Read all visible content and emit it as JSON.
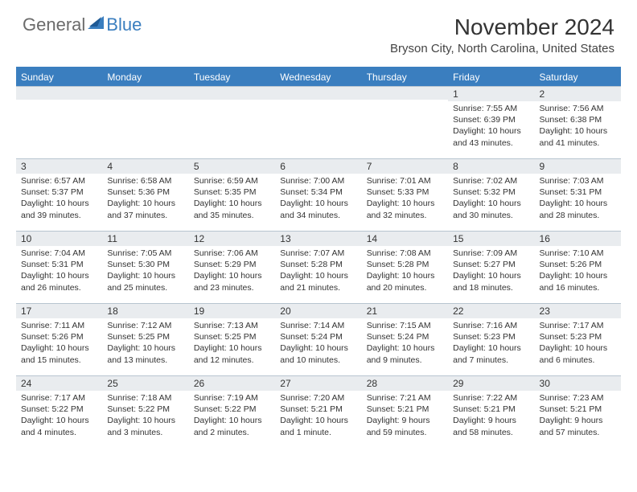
{
  "logo": {
    "text1": "General",
    "text2": "Blue"
  },
  "title": "November 2024",
  "location": "Bryson City, North Carolina, United States",
  "colors": {
    "accent": "#3a7ebf",
    "header_row": "#e9ecef",
    "border": "#b8c5d0",
    "text": "#333333",
    "logo_gray": "#6b6b6b"
  },
  "day_headers": [
    "Sunday",
    "Monday",
    "Tuesday",
    "Wednesday",
    "Thursday",
    "Friday",
    "Saturday"
  ],
  "weeks": [
    [
      {
        "day": "",
        "lines": []
      },
      {
        "day": "",
        "lines": []
      },
      {
        "day": "",
        "lines": []
      },
      {
        "day": "",
        "lines": []
      },
      {
        "day": "",
        "lines": []
      },
      {
        "day": "1",
        "lines": [
          "Sunrise: 7:55 AM",
          "Sunset: 6:39 PM",
          "Daylight: 10 hours",
          "and 43 minutes."
        ]
      },
      {
        "day": "2",
        "lines": [
          "Sunrise: 7:56 AM",
          "Sunset: 6:38 PM",
          "Daylight: 10 hours",
          "and 41 minutes."
        ]
      }
    ],
    [
      {
        "day": "3",
        "lines": [
          "Sunrise: 6:57 AM",
          "Sunset: 5:37 PM",
          "Daylight: 10 hours",
          "and 39 minutes."
        ]
      },
      {
        "day": "4",
        "lines": [
          "Sunrise: 6:58 AM",
          "Sunset: 5:36 PM",
          "Daylight: 10 hours",
          "and 37 minutes."
        ]
      },
      {
        "day": "5",
        "lines": [
          "Sunrise: 6:59 AM",
          "Sunset: 5:35 PM",
          "Daylight: 10 hours",
          "and 35 minutes."
        ]
      },
      {
        "day": "6",
        "lines": [
          "Sunrise: 7:00 AM",
          "Sunset: 5:34 PM",
          "Daylight: 10 hours",
          "and 34 minutes."
        ]
      },
      {
        "day": "7",
        "lines": [
          "Sunrise: 7:01 AM",
          "Sunset: 5:33 PM",
          "Daylight: 10 hours",
          "and 32 minutes."
        ]
      },
      {
        "day": "8",
        "lines": [
          "Sunrise: 7:02 AM",
          "Sunset: 5:32 PM",
          "Daylight: 10 hours",
          "and 30 minutes."
        ]
      },
      {
        "day": "9",
        "lines": [
          "Sunrise: 7:03 AM",
          "Sunset: 5:31 PM",
          "Daylight: 10 hours",
          "and 28 minutes."
        ]
      }
    ],
    [
      {
        "day": "10",
        "lines": [
          "Sunrise: 7:04 AM",
          "Sunset: 5:31 PM",
          "Daylight: 10 hours",
          "and 26 minutes."
        ]
      },
      {
        "day": "11",
        "lines": [
          "Sunrise: 7:05 AM",
          "Sunset: 5:30 PM",
          "Daylight: 10 hours",
          "and 25 minutes."
        ]
      },
      {
        "day": "12",
        "lines": [
          "Sunrise: 7:06 AM",
          "Sunset: 5:29 PM",
          "Daylight: 10 hours",
          "and 23 minutes."
        ]
      },
      {
        "day": "13",
        "lines": [
          "Sunrise: 7:07 AM",
          "Sunset: 5:28 PM",
          "Daylight: 10 hours",
          "and 21 minutes."
        ]
      },
      {
        "day": "14",
        "lines": [
          "Sunrise: 7:08 AM",
          "Sunset: 5:28 PM",
          "Daylight: 10 hours",
          "and 20 minutes."
        ]
      },
      {
        "day": "15",
        "lines": [
          "Sunrise: 7:09 AM",
          "Sunset: 5:27 PM",
          "Daylight: 10 hours",
          "and 18 minutes."
        ]
      },
      {
        "day": "16",
        "lines": [
          "Sunrise: 7:10 AM",
          "Sunset: 5:26 PM",
          "Daylight: 10 hours",
          "and 16 minutes."
        ]
      }
    ],
    [
      {
        "day": "17",
        "lines": [
          "Sunrise: 7:11 AM",
          "Sunset: 5:26 PM",
          "Daylight: 10 hours",
          "and 15 minutes."
        ]
      },
      {
        "day": "18",
        "lines": [
          "Sunrise: 7:12 AM",
          "Sunset: 5:25 PM",
          "Daylight: 10 hours",
          "and 13 minutes."
        ]
      },
      {
        "day": "19",
        "lines": [
          "Sunrise: 7:13 AM",
          "Sunset: 5:25 PM",
          "Daylight: 10 hours",
          "and 12 minutes."
        ]
      },
      {
        "day": "20",
        "lines": [
          "Sunrise: 7:14 AM",
          "Sunset: 5:24 PM",
          "Daylight: 10 hours",
          "and 10 minutes."
        ]
      },
      {
        "day": "21",
        "lines": [
          "Sunrise: 7:15 AM",
          "Sunset: 5:24 PM",
          "Daylight: 10 hours",
          "and 9 minutes."
        ]
      },
      {
        "day": "22",
        "lines": [
          "Sunrise: 7:16 AM",
          "Sunset: 5:23 PM",
          "Daylight: 10 hours",
          "and 7 minutes."
        ]
      },
      {
        "day": "23",
        "lines": [
          "Sunrise: 7:17 AM",
          "Sunset: 5:23 PM",
          "Daylight: 10 hours",
          "and 6 minutes."
        ]
      }
    ],
    [
      {
        "day": "24",
        "lines": [
          "Sunrise: 7:17 AM",
          "Sunset: 5:22 PM",
          "Daylight: 10 hours",
          "and 4 minutes."
        ]
      },
      {
        "day": "25",
        "lines": [
          "Sunrise: 7:18 AM",
          "Sunset: 5:22 PM",
          "Daylight: 10 hours",
          "and 3 minutes."
        ]
      },
      {
        "day": "26",
        "lines": [
          "Sunrise: 7:19 AM",
          "Sunset: 5:22 PM",
          "Daylight: 10 hours",
          "and 2 minutes."
        ]
      },
      {
        "day": "27",
        "lines": [
          "Sunrise: 7:20 AM",
          "Sunset: 5:21 PM",
          "Daylight: 10 hours",
          "and 1 minute."
        ]
      },
      {
        "day": "28",
        "lines": [
          "Sunrise: 7:21 AM",
          "Sunset: 5:21 PM",
          "Daylight: 9 hours",
          "and 59 minutes."
        ]
      },
      {
        "day": "29",
        "lines": [
          "Sunrise: 7:22 AM",
          "Sunset: 5:21 PM",
          "Daylight: 9 hours",
          "and 58 minutes."
        ]
      },
      {
        "day": "30",
        "lines": [
          "Sunrise: 7:23 AM",
          "Sunset: 5:21 PM",
          "Daylight: 9 hours",
          "and 57 minutes."
        ]
      }
    ]
  ]
}
